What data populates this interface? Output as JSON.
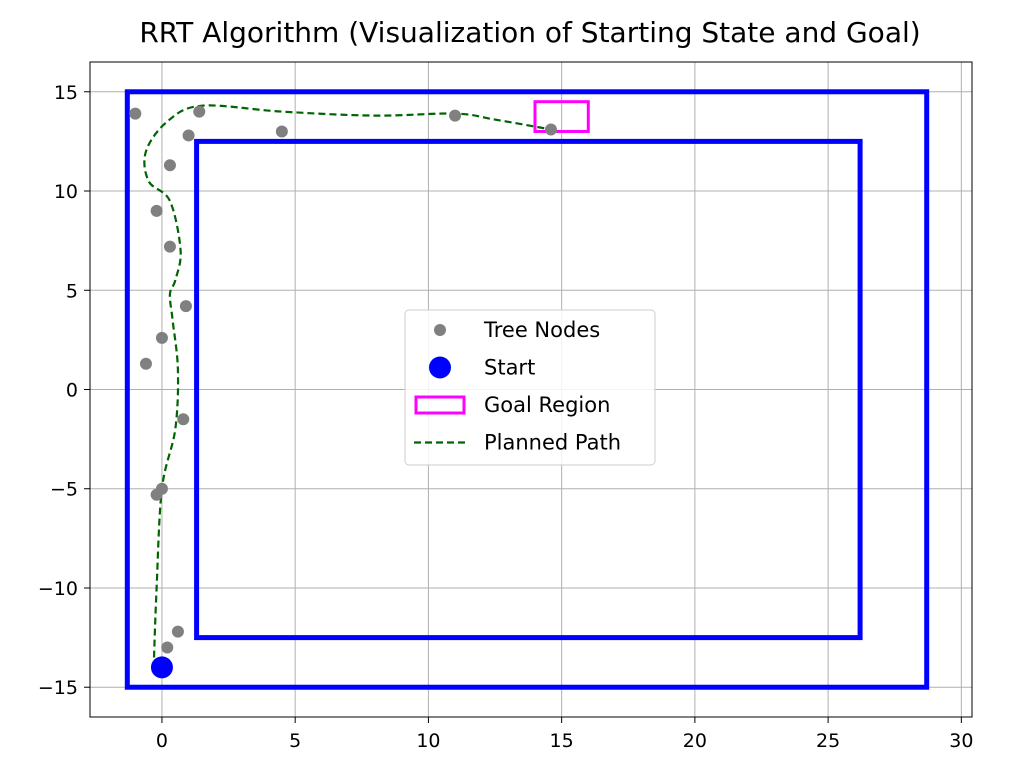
{
  "chart_data": {
    "type": "scatter",
    "title": "RRT Algorithm (Visualization of Starting State and Goal)",
    "xlabel": "",
    "ylabel": "",
    "xlim": [
      -2.7,
      30.4
    ],
    "ylim": [
      -16.5,
      16.5
    ],
    "grid": true,
    "x_ticks": [
      0,
      5,
      10,
      15,
      20,
      25,
      30
    ],
    "y_ticks": [
      -15,
      -10,
      -5,
      0,
      5,
      10,
      15
    ],
    "x_tick_labels": [
      "0",
      "5",
      "10",
      "15",
      "20",
      "25",
      "30"
    ],
    "y_tick_labels": [
      "−15",
      "−10",
      "−5",
      "0",
      "5",
      "10",
      "15"
    ],
    "legend": {
      "placement": "center",
      "entries": [
        "Tree Nodes",
        "Start",
        "Goal Region",
        "Planned Path"
      ]
    },
    "colors": {
      "tree_nodes": "#808080",
      "start": "#0000ff",
      "goal": "#ff00ff",
      "path": "#006400",
      "walls": "#0000ff"
    },
    "walls": [
      {
        "x": [
          -1.3,
          28.7
        ],
        "y": [
          -15.0,
          15.0
        ]
      },
      {
        "x": [
          1.3,
          26.2
        ],
        "y": [
          -12.5,
          12.5
        ]
      }
    ],
    "goal_region": {
      "x": [
        14.0,
        16.0
      ],
      "y": [
        13.0,
        14.5
      ]
    },
    "start": {
      "x": 0.0,
      "y": -14.0
    },
    "tree_nodes": {
      "x": [
        -1.0,
        1.4,
        4.5,
        11.0,
        14.6,
        1.0,
        0.3,
        -0.2,
        0.3,
        0.9,
        0.0,
        -0.6,
        0.8,
        0.0,
        -0.2,
        0.6,
        0.2
      ],
      "y": [
        13.9,
        14.0,
        13.0,
        13.8,
        13.1,
        12.8,
        11.3,
        9.0,
        7.2,
        4.2,
        2.6,
        1.3,
        -1.5,
        -5.0,
        -5.3,
        -12.2,
        -13.0
      ]
    },
    "planned_path": {
      "x": [
        -0.3,
        -0.2,
        0.0,
        0.5,
        0.6,
        0.4,
        0.3,
        0.5,
        0.7,
        0.3,
        -0.5,
        -0.6,
        0.2,
        1.5,
        4.5,
        8.0,
        11.0,
        12.5,
        14.6
      ],
      "y": [
        -13.5,
        -10.0,
        -5.0,
        -2.0,
        1.0,
        3.5,
        4.8,
        5.5,
        7.0,
        9.5,
        10.5,
        12.0,
        13.5,
        14.3,
        14.0,
        13.8,
        13.9,
        13.6,
        13.1
      ]
    }
  }
}
